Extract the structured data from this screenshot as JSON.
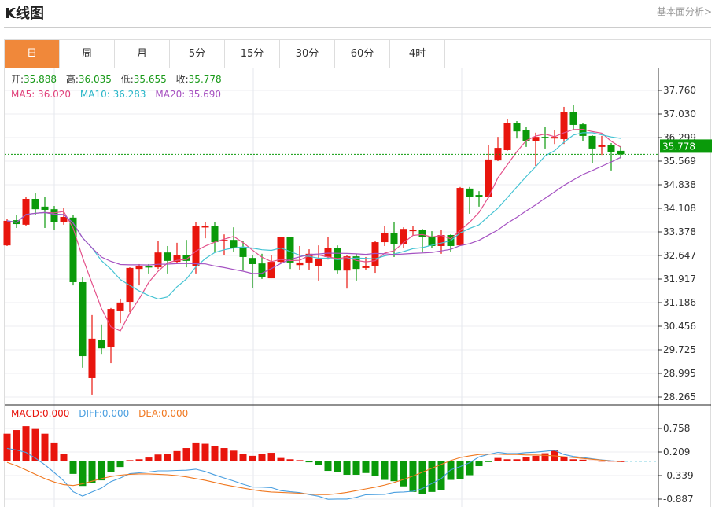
{
  "header": {
    "title": "K线图",
    "link": "基本面分析>"
  },
  "tabs": [
    {
      "label": "日",
      "active": true
    },
    {
      "label": "周"
    },
    {
      "label": "月"
    },
    {
      "label": "5分"
    },
    {
      "label": "15分"
    },
    {
      "label": "30分"
    },
    {
      "label": "60分"
    },
    {
      "label": "4时"
    }
  ],
  "ohlc_legend": {
    "open_label": "开:",
    "open": "35.888",
    "high_label": "高:",
    "high": "36.035",
    "low_label": "低:",
    "low": "35.655",
    "close_label": "收:",
    "close": "35.778"
  },
  "ma_legend": {
    "ma5": "MA5: 36.020",
    "ma10": "MA10: 36.283",
    "ma20": "MA20: 35.690"
  },
  "macd_legend": {
    "macd": "MACD:0.000",
    "diff": "DIFF:0.000",
    "dea": "DEA:0.000"
  },
  "colors": {
    "up": "#e8150d",
    "down": "#0a9a0a",
    "ma5": "#e4508a",
    "ma10": "#45c3d3",
    "ma20": "#a552c2",
    "diff": "#4a9fe0",
    "dea": "#f07820",
    "accent": "#f0883a"
  },
  "chart_data": [
    {
      "type": "candlestick",
      "y_ticks": [
        "37.760",
        "37.030",
        "36.299",
        "35.569",
        "34.838",
        "34.108",
        "33.378",
        "32.647",
        "31.917",
        "31.186",
        "30.456",
        "29.725",
        "28.995",
        "28.265"
      ],
      "ylim": [
        28.265,
        37.76
      ],
      "last_price": "35.778",
      "ohlc": [
        [
          32.96,
          33.79,
          32.94,
          33.72
        ],
        [
          33.74,
          33.91,
          33.5,
          33.62
        ],
        [
          33.6,
          34.45,
          33.57,
          34.4
        ],
        [
          34.4,
          34.57,
          33.91,
          34.08
        ],
        [
          34.16,
          34.45,
          33.5,
          34.06
        ],
        [
          34.08,
          34.18,
          33.45,
          33.67
        ],
        [
          33.67,
          34.11,
          33.6,
          33.84
        ],
        [
          33.82,
          33.91,
          31.72,
          31.82
        ],
        [
          31.82,
          31.97,
          29.17,
          29.53
        ],
        [
          28.85,
          30.8,
          28.34,
          30.07
        ],
        [
          30.04,
          30.51,
          29.6,
          29.77
        ],
        [
          29.8,
          31.02,
          29.31,
          30.99
        ],
        [
          30.92,
          31.31,
          30.55,
          31.19
        ],
        [
          31.21,
          32.28,
          30.89,
          32.26
        ],
        [
          32.23,
          32.38,
          31.72,
          32.33
        ],
        [
          32.31,
          32.38,
          32.09,
          32.28
        ],
        [
          32.28,
          33.09,
          32.23,
          32.74
        ],
        [
          32.74,
          32.94,
          32.09,
          32.48
        ],
        [
          32.45,
          33.04,
          32.4,
          32.65
        ],
        [
          32.65,
          33.13,
          32.28,
          32.48
        ],
        [
          32.33,
          33.67,
          32.09,
          33.55
        ],
        [
          33.52,
          33.67,
          33.18,
          33.55
        ],
        [
          33.55,
          33.67,
          32.77,
          33.06
        ],
        [
          33.09,
          33.3,
          32.65,
          33.13
        ],
        [
          33.13,
          33.52,
          32.77,
          32.89
        ],
        [
          32.89,
          33.09,
          32.18,
          32.6
        ],
        [
          32.57,
          32.65,
          31.65,
          32.38
        ],
        [
          32.4,
          32.7,
          31.92,
          31.97
        ],
        [
          31.94,
          32.65,
          31.94,
          32.45
        ],
        [
          32.45,
          33.21,
          32.4,
          33.21
        ],
        [
          33.21,
          33.23,
          32.23,
          32.43
        ],
        [
          32.35,
          32.94,
          32.21,
          32.43
        ],
        [
          32.43,
          32.84,
          32.21,
          32.7
        ],
        [
          32.33,
          32.96,
          31.87,
          32.55
        ],
        [
          32.6,
          33.21,
          32.52,
          32.89
        ],
        [
          32.89,
          32.96,
          32.09,
          32.18
        ],
        [
          32.18,
          32.65,
          31.62,
          32.62
        ],
        [
          32.62,
          32.7,
          31.87,
          32.23
        ],
        [
          32.26,
          32.6,
          32.21,
          32.33
        ],
        [
          32.31,
          33.11,
          32.11,
          33.06
        ],
        [
          33.06,
          33.55,
          32.94,
          33.35
        ],
        [
          33.35,
          33.67,
          32.6,
          33.01
        ],
        [
          33.01,
          33.52,
          32.89,
          33.47
        ],
        [
          33.4,
          33.55,
          33.26,
          33.45
        ],
        [
          33.45,
          33.47,
          32.74,
          33.21
        ],
        [
          33.23,
          33.4,
          32.89,
          32.94
        ],
        [
          32.94,
          33.45,
          32.7,
          33.28
        ],
        [
          33.28,
          33.3,
          32.77,
          32.94
        ],
        [
          32.96,
          34.77,
          32.94,
          34.74
        ],
        [
          34.72,
          34.77,
          33.94,
          34.47
        ],
        [
          34.52,
          34.64,
          34.16,
          34.47
        ],
        [
          34.45,
          36.06,
          34.42,
          35.62
        ],
        [
          35.59,
          36.32,
          35.57,
          35.98
        ],
        [
          35.91,
          36.86,
          35.89,
          36.74
        ],
        [
          36.74,
          36.81,
          36.27,
          36.49
        ],
        [
          36.52,
          36.62,
          36.01,
          36.2
        ],
        [
          36.2,
          36.45,
          35.42,
          36.32
        ],
        [
          36.32,
          36.62,
          35.96,
          36.3
        ],
        [
          36.27,
          36.52,
          36.1,
          36.32
        ],
        [
          36.25,
          37.25,
          36.1,
          37.1
        ],
        [
          37.1,
          37.3,
          36.54,
          36.69
        ],
        [
          36.71,
          36.76,
          36.2,
          36.35
        ],
        [
          36.35,
          36.37,
          35.5,
          35.96
        ],
        [
          36.01,
          36.35,
          35.76,
          36.08
        ],
        [
          36.08,
          36.13,
          35.28,
          35.86
        ],
        [
          35.888,
          36.035,
          35.655,
          35.778
        ]
      ],
      "ma_periods": [
        5,
        10,
        20
      ]
    },
    {
      "type": "bar",
      "y_ticks": [
        "0.758",
        "0.209",
        "-0.339",
        "-0.887"
      ],
      "ylim": [
        -0.95,
        0.85
      ],
      "macd": [
        0.645,
        0.73,
        0.82,
        0.755,
        0.645,
        0.44,
        0.18,
        -0.29,
        -0.57,
        -0.5,
        -0.44,
        -0.24,
        -0.13,
        0.03,
        0.05,
        0.09,
        0.16,
        0.18,
        0.24,
        0.31,
        0.44,
        0.41,
        0.35,
        0.31,
        0.25,
        0.18,
        0.13,
        0.18,
        0.2,
        0.08,
        0.05,
        0.03,
        -0.02,
        -0.08,
        -0.22,
        -0.25,
        -0.31,
        -0.31,
        -0.27,
        -0.34,
        -0.43,
        -0.46,
        -0.58,
        -0.71,
        -0.76,
        -0.71,
        -0.66,
        -0.43,
        -0.42,
        -0.32,
        -0.11,
        -0.01,
        0.08,
        0.05,
        0.05,
        0.11,
        0.13,
        0.19,
        0.26,
        0.1,
        0.05,
        0.04,
        0.02,
        0.01,
        0.01,
        0.0
      ],
      "dea": [
        -0.02,
        -0.1,
        -0.2,
        -0.3,
        -0.4,
        -0.48,
        -0.54,
        -0.56,
        -0.52,
        -0.46,
        -0.4,
        -0.35,
        -0.32,
        -0.3,
        -0.29,
        -0.29,
        -0.3,
        -0.31,
        -0.33,
        -0.36,
        -0.4,
        -0.44,
        -0.49,
        -0.54,
        -0.58,
        -0.62,
        -0.66,
        -0.69,
        -0.71,
        -0.72,
        -0.73,
        -0.74,
        -0.76,
        -0.77,
        -0.77,
        -0.75,
        -0.72,
        -0.68,
        -0.64,
        -0.6,
        -0.55,
        -0.49,
        -0.42,
        -0.34,
        -0.25,
        -0.16,
        -0.07,
        0.02,
        0.09,
        0.13,
        0.16,
        0.17,
        0.17,
        0.16,
        0.16,
        0.15,
        0.15,
        0.14,
        0.13,
        0.11,
        0.09,
        0.07,
        0.05,
        0.03,
        0.01,
        0.0
      ]
    }
  ]
}
